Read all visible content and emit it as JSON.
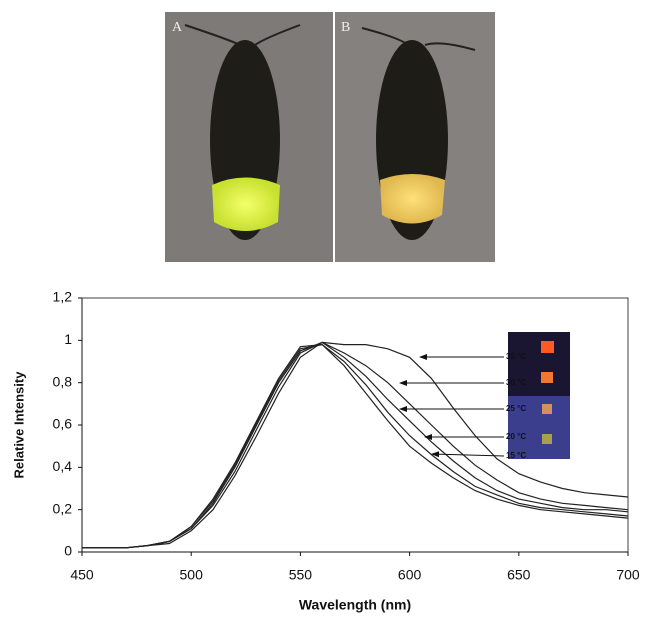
{
  "photos": {
    "panels": [
      {
        "label": "A"
      },
      {
        "label": "B"
      }
    ]
  },
  "chart_data": {
    "type": "line",
    "x_label": "Wavelength (nm)",
    "y_label": "Relative Intensity",
    "x": [
      450,
      460,
      470,
      480,
      490,
      500,
      510,
      520,
      530,
      540,
      550,
      560,
      570,
      580,
      590,
      600,
      610,
      620,
      630,
      640,
      650,
      660,
      670,
      680,
      690,
      700
    ],
    "series": [
      {
        "name": "35 °C",
        "color": "#222222",
        "values": [
          0.02,
          0.02,
          0.02,
          0.03,
          0.04,
          0.1,
          0.2,
          0.36,
          0.55,
          0.75,
          0.92,
          0.99,
          0.98,
          0.98,
          0.96,
          0.92,
          0.82,
          0.68,
          0.55,
          0.44,
          0.37,
          0.33,
          0.3,
          0.28,
          0.27,
          0.26
        ]
      },
      {
        "name": "30 °C",
        "color": "#222222",
        "values": [
          0.02,
          0.02,
          0.02,
          0.03,
          0.05,
          0.11,
          0.22,
          0.38,
          0.58,
          0.78,
          0.94,
          0.99,
          0.94,
          0.88,
          0.8,
          0.7,
          0.6,
          0.5,
          0.41,
          0.34,
          0.28,
          0.25,
          0.23,
          0.22,
          0.21,
          0.2
        ]
      },
      {
        "name": "25 °C",
        "color": "#222222",
        "values": [
          0.02,
          0.02,
          0.02,
          0.03,
          0.05,
          0.11,
          0.23,
          0.4,
          0.6,
          0.8,
          0.95,
          0.99,
          0.92,
          0.83,
          0.72,
          0.62,
          0.52,
          0.43,
          0.35,
          0.29,
          0.25,
          0.23,
          0.21,
          0.2,
          0.2,
          0.19
        ]
      },
      {
        "name": "20 °C",
        "color": "#222222",
        "values": [
          0.02,
          0.02,
          0.02,
          0.03,
          0.05,
          0.12,
          0.24,
          0.41,
          0.61,
          0.81,
          0.96,
          0.98,
          0.9,
          0.79,
          0.66,
          0.55,
          0.46,
          0.38,
          0.31,
          0.27,
          0.23,
          0.21,
          0.2,
          0.19,
          0.18,
          0.17
        ]
      },
      {
        "name": "15 °C",
        "color": "#222222",
        "values": [
          0.02,
          0.02,
          0.02,
          0.03,
          0.05,
          0.12,
          0.25,
          0.42,
          0.62,
          0.82,
          0.97,
          0.98,
          0.88,
          0.75,
          0.62,
          0.5,
          0.42,
          0.35,
          0.29,
          0.25,
          0.22,
          0.2,
          0.19,
          0.18,
          0.17,
          0.16
        ]
      }
    ],
    "xlim": [
      450,
      700
    ],
    "xticks": [
      450,
      500,
      550,
      600,
      650,
      700
    ],
    "ylim": [
      0,
      1.2
    ],
    "yticks": [
      0,
      {
        "value": 0.2,
        "label": "0,2"
      },
      {
        "value": 0.4,
        "label": "0,4"
      },
      {
        "value": 0.6,
        "label": "0,6"
      },
      {
        "value": 0.8,
        "label": "0,8"
      },
      1,
      {
        "value": 1.2,
        "label": "1,2"
      }
    ],
    "grid": false
  }
}
